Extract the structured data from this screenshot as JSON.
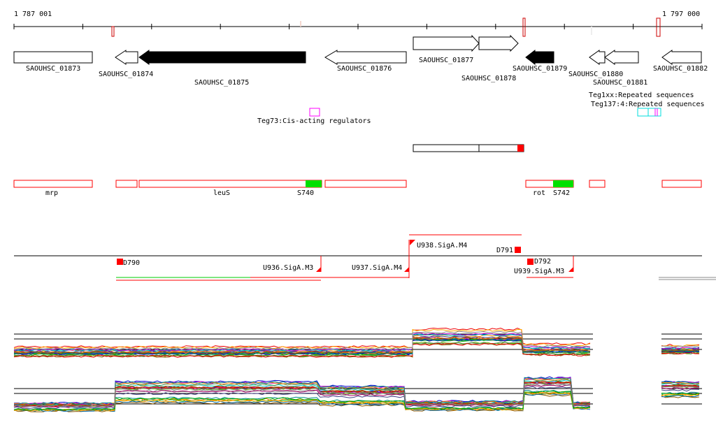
{
  "ruler": {
    "start": "1 787 001",
    "end": "1 797 000"
  },
  "genes": [
    "SAOUHSC_01873",
    "SAOUHSC_01874",
    "SAOUHSC_01875",
    "SAOUHSC_01876",
    "SAOUHSC_01877",
    "SAOUHSC_01878",
    "SAOUHSC_01879",
    "SAOUHSC_01880",
    "SAOUHSC_01881",
    "SAOUHSC_01882"
  ],
  "regulators": {
    "teg73": "Teg73:Cis-acting regulators",
    "teg137": "Teg137:4:Repeated sequences",
    "overlap": "Teg1xx:Repeated sequences"
  },
  "operons": {
    "mrp": "mrp",
    "leuS": "leuS",
    "s740": "S740",
    "rot": "rot",
    "s742": "S742"
  },
  "promoters": {
    "d790": "D790",
    "d791": "D791",
    "d792": "D792",
    "u936": "U936.SigA.M3",
    "u937": "U937.SigA.M4",
    "u938": "U938.SigA.M4",
    "u939": "U939.SigA.M3"
  },
  "colors": {
    "red": "#ff0000",
    "green": "#00e000",
    "magenta": "#ff00ff",
    "cyan": "#00e0e0"
  }
}
